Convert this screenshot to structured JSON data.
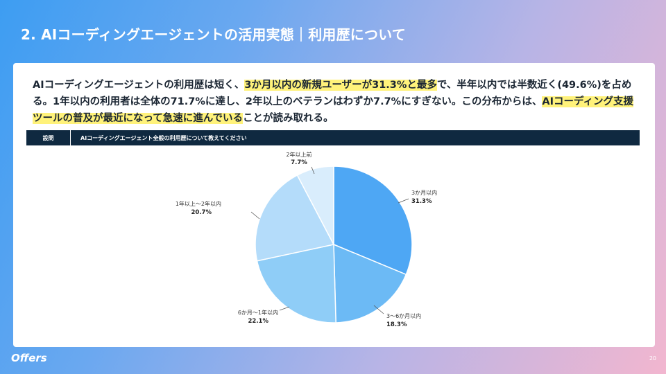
{
  "slide": {
    "title": "2. AIコーディングエージェントの活用実態｜利用歴について",
    "page_number": "20",
    "logo": "Offers"
  },
  "summary": {
    "p1": "AIコーディングエージェントの利用歴は短く、",
    "h1": "3か月以内の新規ユーザーが31.3%と最多",
    "p2": "で、半年以内では半数近く(49.6%)を占める。1年以内の利用者は全体の71.7%に達し、2年以上のベテランはわずか7.7%にすぎない。この分布からは、",
    "h2": "AIコーディング支援ツールの普及が最近になって急速に進んでいる",
    "p3": "ことが読み取れる。"
  },
  "question": {
    "label": "設問",
    "text": "AIコーディングエージェント全般の利用歴について教えてください"
  },
  "colors": {
    "accent_dark": "#0f2940",
    "highlight": "#fff27a"
  },
  "chart_data": {
    "type": "pie",
    "categories": [
      "3か月以内",
      "3〜6か月以内",
      "6か月〜1年以内",
      "1年以上〜2年以内",
      "2年以上前"
    ],
    "values": [
      31.3,
      18.3,
      22.1,
      20.7,
      7.7
    ],
    "value_labels": [
      "31.3%",
      "18.3%",
      "22.1%",
      "20.7%",
      "7.7%"
    ],
    "colors": [
      "#4ea7f4",
      "#6cbaf5",
      "#8fcdf7",
      "#b4dcfa",
      "#d9edfc"
    ]
  }
}
